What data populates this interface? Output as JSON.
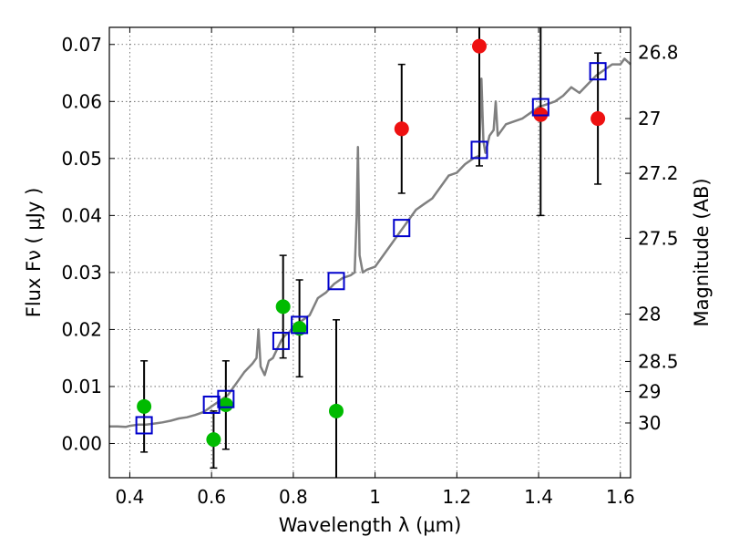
{
  "chart_data": {
    "type": "scatter",
    "xlabel": "Wavelength  λ (μm)",
    "ylabel": "Flux  Fν  ( μJy )",
    "y2label": "Magnitude (AB)",
    "xlim": [
      0.35,
      1.625
    ],
    "ylim": [
      -0.006,
      0.073
    ],
    "x_ticks": [
      0.4,
      0.6,
      0.8,
      1.0,
      1.2,
      1.4,
      1.6
    ],
    "x_tick_labels": [
      "0.4",
      "0.6",
      "0.8",
      "1",
      "1.2",
      "1.4",
      "1.6"
    ],
    "y_ticks": [
      0.0,
      0.01,
      0.02,
      0.03,
      0.04,
      0.05,
      0.06,
      0.07
    ],
    "y_tick_labels": [
      "0.00",
      "0.01",
      "0.02",
      "0.03",
      "0.04",
      "0.05",
      "0.06",
      "0.07"
    ],
    "y2_ticks": [
      {
        "label": "26.8",
        "flux": 0.0686
      },
      {
        "label": "27",
        "flux": 0.057
      },
      {
        "label": "27.2",
        "flux": 0.0474
      },
      {
        "label": "27.5",
        "flux": 0.036
      },
      {
        "label": "28",
        "flux": 0.0227
      },
      {
        "label": "28.5",
        "flux": 0.0144
      },
      {
        "label": "29",
        "flux": 0.0091
      },
      {
        "label": "30",
        "flux": 0.0036
      }
    ],
    "grid": true,
    "colors": {
      "model": "#808080",
      "green": "#00bb00",
      "red": "#ee1111",
      "square": "#0000cc",
      "errorbar": "#000000"
    },
    "model_spectrum": [
      [
        0.35,
        0.003
      ],
      [
        0.37,
        0.003
      ],
      [
        0.39,
        0.0029
      ],
      [
        0.4,
        0.0031
      ],
      [
        0.42,
        0.0033
      ],
      [
        0.44,
        0.0033
      ],
      [
        0.46,
        0.0035
      ],
      [
        0.48,
        0.0037
      ],
      [
        0.5,
        0.004
      ],
      [
        0.52,
        0.0044
      ],
      [
        0.54,
        0.0046
      ],
      [
        0.56,
        0.005
      ],
      [
        0.58,
        0.0055
      ],
      [
        0.6,
        0.0065
      ],
      [
        0.62,
        0.0075
      ],
      [
        0.64,
        0.0085
      ],
      [
        0.66,
        0.0105
      ],
      [
        0.68,
        0.0125
      ],
      [
        0.7,
        0.014
      ],
      [
        0.71,
        0.015
      ],
      [
        0.715,
        0.02
      ],
      [
        0.72,
        0.0135
      ],
      [
        0.73,
        0.012
      ],
      [
        0.74,
        0.0145
      ],
      [
        0.75,
        0.015
      ],
      [
        0.76,
        0.0165
      ],
      [
        0.77,
        0.018
      ],
      [
        0.78,
        0.019
      ],
      [
        0.79,
        0.0195
      ],
      [
        0.8,
        0.0205
      ],
      [
        0.82,
        0.0215
      ],
      [
        0.84,
        0.0225
      ],
      [
        0.86,
        0.0255
      ],
      [
        0.88,
        0.0265
      ],
      [
        0.9,
        0.028
      ],
      [
        0.92,
        0.029
      ],
      [
        0.94,
        0.0295
      ],
      [
        0.95,
        0.03
      ],
      [
        0.955,
        0.04
      ],
      [
        0.958,
        0.052
      ],
      [
        0.962,
        0.033
      ],
      [
        0.97,
        0.03
      ],
      [
        0.98,
        0.0305
      ],
      [
        1.0,
        0.031
      ],
      [
        1.02,
        0.033
      ],
      [
        1.04,
        0.035
      ],
      [
        1.06,
        0.037
      ],
      [
        1.08,
        0.039
      ],
      [
        1.1,
        0.041
      ],
      [
        1.12,
        0.042
      ],
      [
        1.14,
        0.043
      ],
      [
        1.16,
        0.045
      ],
      [
        1.18,
        0.047
      ],
      [
        1.2,
        0.0475
      ],
      [
        1.22,
        0.049
      ],
      [
        1.24,
        0.05
      ],
      [
        1.255,
        0.0505
      ],
      [
        1.26,
        0.064
      ],
      [
        1.265,
        0.053
      ],
      [
        1.27,
        0.051
      ],
      [
        1.28,
        0.054
      ],
      [
        1.29,
        0.055
      ],
      [
        1.295,
        0.06
      ],
      [
        1.3,
        0.054
      ],
      [
        1.32,
        0.056
      ],
      [
        1.34,
        0.0565
      ],
      [
        1.36,
        0.057
      ],
      [
        1.38,
        0.058
      ],
      [
        1.4,
        0.059
      ],
      [
        1.42,
        0.0595
      ],
      [
        1.44,
        0.06
      ],
      [
        1.46,
        0.061
      ],
      [
        1.48,
        0.0625
      ],
      [
        1.5,
        0.0615
      ],
      [
        1.52,
        0.063
      ],
      [
        1.54,
        0.0645
      ],
      [
        1.56,
        0.0655
      ],
      [
        1.58,
        0.0665
      ],
      [
        1.6,
        0.0665
      ],
      [
        1.61,
        0.0675
      ],
      [
        1.625,
        0.0665
      ]
    ],
    "green_points": [
      {
        "x": 0.435,
        "y": 0.0065,
        "err_low": 0.008,
        "err_high": 0.008
      },
      {
        "x": 0.605,
        "y": 0.0007,
        "err_low": 0.005,
        "err_high": 0.005
      },
      {
        "x": 0.635,
        "y": 0.0068,
        "err_low": 0.0078,
        "err_high": 0.0077
      },
      {
        "x": 0.775,
        "y": 0.024,
        "err_low": 0.009,
        "err_high": 0.009
      },
      {
        "x": 0.815,
        "y": 0.0202,
        "err_low": 0.0085,
        "err_high": 0.0085
      },
      {
        "x": 0.905,
        "y": 0.0057,
        "err_low": 0.02,
        "err_high": 0.016
      }
    ],
    "red_points": [
      {
        "x": 1.065,
        "y": 0.0552,
        "err_low": 0.0113,
        "err_high": 0.0113
      },
      {
        "x": 1.255,
        "y": 0.0697,
        "err_low": 0.021,
        "err_high": 0.021
      },
      {
        "x": 1.405,
        "y": 0.0577,
        "err_low": 0.0177,
        "err_high": 0.0177
      },
      {
        "x": 1.545,
        "y": 0.057,
        "err_low": 0.0115,
        "err_high": 0.0115
      }
    ],
    "square_points": [
      {
        "x": 0.435,
        "y": 0.0032
      },
      {
        "x": 0.6,
        "y": 0.0068
      },
      {
        "x": 0.635,
        "y": 0.0078
      },
      {
        "x": 0.77,
        "y": 0.018
      },
      {
        "x": 0.815,
        "y": 0.0208
      },
      {
        "x": 0.905,
        "y": 0.0285
      },
      {
        "x": 1.065,
        "y": 0.0378
      },
      {
        "x": 1.255,
        "y": 0.0515
      },
      {
        "x": 1.405,
        "y": 0.059
      },
      {
        "x": 1.545,
        "y": 0.0653
      }
    ]
  }
}
